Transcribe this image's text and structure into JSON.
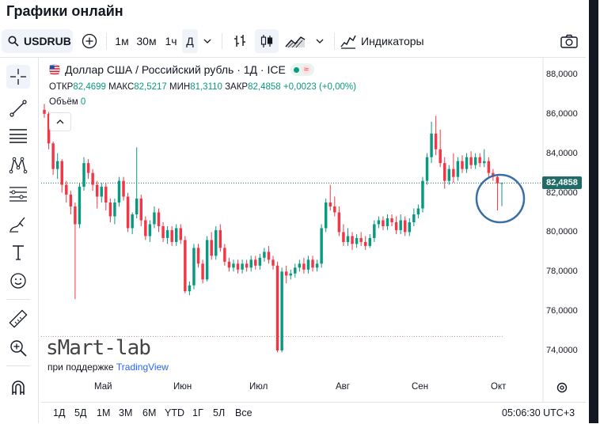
{
  "page": {
    "title": "Графики онлайн"
  },
  "toolbar": {
    "symbol": "USDRUB",
    "intervals": [
      "1м",
      "30м",
      "1ч",
      "Д"
    ],
    "active_interval": "Д",
    "indicators_label": "Индикаторы"
  },
  "legend": {
    "title": "Доллар США / Российский рубль · 1Д · ICE",
    "open_label": "ОТКР",
    "open": "82,4699",
    "high_label": "МАКС",
    "high": "82,5217",
    "low_label": "МИН",
    "low": "81,3110",
    "close_label": "ЗАКР",
    "close": "82,4858",
    "change": "+0,0023 (+0,00%)",
    "volume_label": "Объём",
    "volume": "0"
  },
  "price_axis": [
    "88,0000",
    "86,0000",
    "84,0000",
    "82,0000",
    "80,0000",
    "78,0000",
    "76,0000",
    "74,0000"
  ],
  "current_price": "82,4858",
  "time_axis": [
    "Май",
    "Июн",
    "Июл",
    "Авг",
    "Сен",
    "Окт"
  ],
  "watermark": {
    "brand": "sMart-lab",
    "sub_prefix": "при поддержке",
    "sub_link": "TradingView"
  },
  "ranges": [
    "1Д",
    "5Д",
    "1М",
    "3М",
    "6М",
    "YTD",
    "1Г",
    "5Л",
    "Все"
  ],
  "clock": "05:06:30 UTC+3",
  "colors": {
    "up": "#089981",
    "down": "#f23645",
    "price_line": "#1e6b67",
    "circle": "#3a6ea5"
  },
  "chart_data": {
    "type": "candlestick",
    "symbol": "USDRUB",
    "interval": "1D",
    "x_labels": [
      "Май",
      "Июн",
      "Июл",
      "Авг",
      "Сен",
      "Окт"
    ],
    "ylim": [
      73.6,
      89.0
    ],
    "candles": [
      [
        86.2,
        86.0,
        86.5,
        85.8
      ],
      [
        86.0,
        84.5,
        86.1,
        84.2
      ],
      [
        84.5,
        83.2,
        84.6,
        82.9
      ],
      [
        83.2,
        83.6,
        84.0,
        82.7
      ],
      [
        83.6,
        82.4,
        83.7,
        82.0
      ],
      [
        82.4,
        81.9,
        82.6,
        81.5
      ],
      [
        81.9,
        81.3,
        82.1,
        80.9
      ],
      [
        81.3,
        80.4,
        81.5,
        76.6
      ],
      [
        80.4,
        82.3,
        82.5,
        80.2
      ],
      [
        82.3,
        83.5,
        83.8,
        82.1
      ],
      [
        83.5,
        83.0,
        83.7,
        82.7
      ],
      [
        83.0,
        82.4,
        83.2,
        82.1
      ],
      [
        82.4,
        81.8,
        82.6,
        81.2
      ],
      [
        81.8,
        82.3,
        82.5,
        81.5
      ],
      [
        82.3,
        81.5,
        82.5,
        81.1
      ],
      [
        81.5,
        80.8,
        81.7,
        80.5
      ],
      [
        80.8,
        81.5,
        81.7,
        80.4
      ],
      [
        81.5,
        82.6,
        82.8,
        81.3
      ],
      [
        82.6,
        81.8,
        82.8,
        81.6
      ],
      [
        81.8,
        80.2,
        82.0,
        80.0
      ],
      [
        80.2,
        80.9,
        81.0,
        79.9
      ],
      [
        80.9,
        81.7,
        84.3,
        80.7
      ],
      [
        81.7,
        80.6,
        81.9,
        80.3
      ],
      [
        80.6,
        79.8,
        80.8,
        79.6
      ],
      [
        79.8,
        80.4,
        80.6,
        79.5
      ],
      [
        80.4,
        81.0,
        81.3,
        80.2
      ],
      [
        81.0,
        80.3,
        81.2,
        80.0
      ],
      [
        80.3,
        79.7,
        80.5,
        79.5
      ],
      [
        79.7,
        80.1,
        80.3,
        79.4
      ],
      [
        80.1,
        79.5,
        80.3,
        79.3
      ],
      [
        79.5,
        80.2,
        80.4,
        79.3
      ],
      [
        80.2,
        79.6,
        80.4,
        79.4
      ],
      [
        79.6,
        77.0,
        79.8,
        76.9
      ],
      [
        77.0,
        77.3,
        77.5,
        76.8
      ],
      [
        77.3,
        79.2,
        79.4,
        77.1
      ],
      [
        79.2,
        78.4,
        79.4,
        78.2
      ],
      [
        78.4,
        77.6,
        78.6,
        77.4
      ],
      [
        77.6,
        79.6,
        79.8,
        77.5
      ],
      [
        79.6,
        78.8,
        80.0,
        78.6
      ],
      [
        78.8,
        80.1,
        80.3,
        78.6
      ],
      [
        80.1,
        79.2,
        80.4,
        79.0
      ],
      [
        79.2,
        78.5,
        79.4,
        78.3
      ],
      [
        78.5,
        78.2,
        78.7,
        78.0
      ],
      [
        78.2,
        78.4,
        78.6,
        78.0
      ],
      [
        78.4,
        78.1,
        78.6,
        77.9
      ],
      [
        78.1,
        78.4,
        78.6,
        77.9
      ],
      [
        78.4,
        78.2,
        78.6,
        78.0
      ],
      [
        78.2,
        78.6,
        78.8,
        78.0
      ],
      [
        78.6,
        78.3,
        78.8,
        78.1
      ],
      [
        78.3,
        78.7,
        78.9,
        78.1
      ],
      [
        78.7,
        79.0,
        79.2,
        78.5
      ],
      [
        79.0,
        78.6,
        79.3,
        78.4
      ],
      [
        78.6,
        78.3,
        78.8,
        78.1
      ],
      [
        78.3,
        74.0,
        78.5,
        73.9
      ],
      [
        74.0,
        78.0,
        78.2,
        73.9
      ],
      [
        78.0,
        77.8,
        78.3,
        77.4
      ],
      [
        77.8,
        77.9,
        78.1,
        77.6
      ],
      [
        77.9,
        78.2,
        78.4,
        77.7
      ],
      [
        78.2,
        78.4,
        78.6,
        78.0
      ],
      [
        78.4,
        78.1,
        78.7,
        77.9
      ],
      [
        78.1,
        78.6,
        78.8,
        77.9
      ],
      [
        78.6,
        78.2,
        78.8,
        78.0
      ],
      [
        78.2,
        78.4,
        78.6,
        78.0
      ],
      [
        78.4,
        80.2,
        80.4,
        78.2
      ],
      [
        80.2,
        81.5,
        81.7,
        80.0
      ],
      [
        81.5,
        81.3,
        82.4,
        81.1
      ],
      [
        81.3,
        81.0,
        81.8,
        80.8
      ],
      [
        81.0,
        80.0,
        81.3,
        79.8
      ],
      [
        80.0,
        79.5,
        80.4,
        79.3
      ],
      [
        79.5,
        79.8,
        80.2,
        79.3
      ],
      [
        79.8,
        79.4,
        80.0,
        79.1
      ],
      [
        79.4,
        79.7,
        79.9,
        79.2
      ],
      [
        79.7,
        79.5,
        80.0,
        79.3
      ],
      [
        79.5,
        79.3,
        79.8,
        79.1
      ],
      [
        79.3,
        79.7,
        79.9,
        79.2
      ],
      [
        79.7,
        80.4,
        80.6,
        79.5
      ],
      [
        80.4,
        80.6,
        80.8,
        80.2
      ],
      [
        80.6,
        80.3,
        80.8,
        80.1
      ],
      [
        80.3,
        80.7,
        80.9,
        80.1
      ],
      [
        80.7,
        80.5,
        80.9,
        80.3
      ],
      [
        80.5,
        80.1,
        80.8,
        79.9
      ],
      [
        80.1,
        80.6,
        80.9,
        79.9
      ],
      [
        80.6,
        80.0,
        80.8,
        79.8
      ],
      [
        80.0,
        80.5,
        80.7,
        79.8
      ],
      [
        80.5,
        80.9,
        81.2,
        80.3
      ],
      [
        80.9,
        81.2,
        81.4,
        80.7
      ],
      [
        81.2,
        82.6,
        82.8,
        81.0
      ],
      [
        82.6,
        83.8,
        84.0,
        82.4
      ],
      [
        83.8,
        85.0,
        85.6,
        83.5
      ],
      [
        85.0,
        84.2,
        85.9,
        83.9
      ],
      [
        84.2,
        83.5,
        85.2,
        83.3
      ],
      [
        83.5,
        82.6,
        83.8,
        82.2
      ],
      [
        82.6,
        83.2,
        83.4,
        82.4
      ],
      [
        83.2,
        82.8,
        84.0,
        82.5
      ],
      [
        82.8,
        83.6,
        83.8,
        82.6
      ],
      [
        83.6,
        83.2,
        83.9,
        83.0
      ],
      [
        83.2,
        83.8,
        84.0,
        83.0
      ],
      [
        83.8,
        83.4,
        84.1,
        83.2
      ],
      [
        83.4,
        83.8,
        84.0,
        83.2
      ],
      [
        83.8,
        83.5,
        84.0,
        83.3
      ],
      [
        83.5,
        83.6,
        84.2,
        83.3
      ],
      [
        83.6,
        83.0,
        83.8,
        82.8
      ],
      [
        83.0,
        82.8,
        83.2,
        82.6
      ],
      [
        82.8,
        82.47,
        82.9,
        81.1
      ],
      [
        82.47,
        82.49,
        82.52,
        81.31
      ]
    ]
  }
}
